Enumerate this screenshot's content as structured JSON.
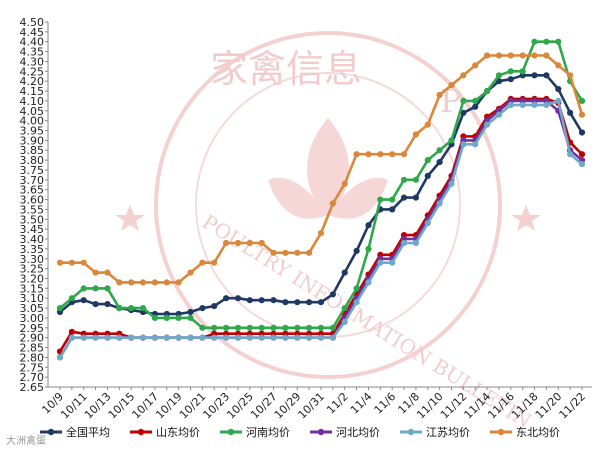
{
  "chart_data": {
    "type": "line",
    "title": "",
    "xlabel": "",
    "ylabel": "",
    "ylim": [
      2.65,
      4.5
    ],
    "ytick_step": 0.05,
    "grid": false,
    "legend_position": "bottom",
    "x_tick_labels": [
      "10/9",
      "10/11",
      "10/13",
      "10/15",
      "10/17",
      "10/19",
      "10/21",
      "10/23",
      "10/25",
      "10/27",
      "10/29",
      "10/31",
      "11/2",
      "11/4",
      "11/6",
      "11/8",
      "11/10",
      "11/12",
      "11/14",
      "11/16",
      "11/18",
      "11/20",
      "11/22"
    ],
    "x": [
      "10/9",
      "10/10",
      "10/11",
      "10/12",
      "10/13",
      "10/14",
      "10/15",
      "10/16",
      "10/17",
      "10/18",
      "10/19",
      "10/20",
      "10/21",
      "10/22",
      "10/23",
      "10/24",
      "10/25",
      "10/26",
      "10/27",
      "10/28",
      "10/29",
      "10/30",
      "10/31",
      "11/1",
      "11/2",
      "11/3",
      "11/4",
      "11/5",
      "11/6",
      "11/7",
      "11/8",
      "11/9",
      "11/10",
      "11/11",
      "11/12",
      "11/13",
      "11/14",
      "11/15",
      "11/16",
      "11/17",
      "11/18",
      "11/19",
      "11/20",
      "11/21",
      "11/22"
    ],
    "series": [
      {
        "name": "全国平均",
        "color": "#1f3864",
        "values": [
          3.03,
          3.08,
          3.09,
          3.07,
          3.07,
          3.05,
          3.04,
          3.03,
          3.02,
          3.02,
          3.02,
          3.03,
          3.05,
          3.06,
          3.1,
          3.1,
          3.09,
          3.09,
          3.09,
          3.08,
          3.08,
          3.08,
          3.08,
          3.12,
          3.23,
          3.34,
          3.47,
          3.55,
          3.55,
          3.61,
          3.61,
          3.72,
          3.79,
          3.88,
          4.04,
          4.07,
          4.15,
          4.2,
          4.21,
          4.23,
          4.23,
          4.23,
          4.16,
          4.04,
          3.94
        ]
      },
      {
        "name": "山东均价",
        "color": "#c00000",
        "values": [
          2.83,
          2.93,
          2.92,
          2.92,
          2.92,
          2.92,
          2.9,
          2.9,
          2.9,
          2.9,
          2.9,
          2.9,
          2.9,
          2.92,
          2.92,
          2.92,
          2.92,
          2.92,
          2.92,
          2.92,
          2.92,
          2.92,
          2.92,
          2.92,
          3.02,
          3.12,
          3.22,
          3.32,
          3.32,
          3.42,
          3.42,
          3.52,
          3.62,
          3.72,
          3.92,
          3.92,
          4.02,
          4.06,
          4.11,
          4.11,
          4.11,
          4.11,
          4.09,
          3.89,
          3.83
        ]
      },
      {
        "name": "河南均价",
        "color": "#2ea84a",
        "values": [
          3.05,
          3.1,
          3.15,
          3.15,
          3.15,
          3.05,
          3.05,
          3.05,
          3.0,
          3.0,
          3.0,
          3.0,
          2.95,
          2.95,
          2.95,
          2.95,
          2.95,
          2.95,
          2.95,
          2.95,
          2.95,
          2.95,
          2.95,
          2.95,
          3.05,
          3.15,
          3.35,
          3.6,
          3.6,
          3.7,
          3.7,
          3.8,
          3.85,
          3.9,
          4.1,
          4.1,
          4.15,
          4.23,
          4.25,
          4.25,
          4.4,
          4.4,
          4.4,
          4.2,
          4.1
        ]
      },
      {
        "name": "河北均价",
        "color": "#7030a0",
        "values": [
          2.8,
          2.9,
          2.9,
          2.9,
          2.9,
          2.9,
          2.9,
          2.9,
          2.9,
          2.9,
          2.9,
          2.9,
          2.9,
          2.9,
          2.9,
          2.9,
          2.9,
          2.9,
          2.9,
          2.9,
          2.9,
          2.9,
          2.9,
          2.9,
          3.0,
          3.1,
          3.2,
          3.3,
          3.3,
          3.4,
          3.4,
          3.5,
          3.6,
          3.7,
          3.9,
          3.9,
          4.0,
          4.05,
          4.1,
          4.1,
          4.1,
          4.1,
          4.05,
          3.85,
          3.8
        ]
      },
      {
        "name": "江苏均价",
        "color": "#6fa8c8",
        "values": [
          2.8,
          2.9,
          2.9,
          2.9,
          2.9,
          2.9,
          2.9,
          2.9,
          2.9,
          2.9,
          2.9,
          2.9,
          2.9,
          2.9,
          2.9,
          2.9,
          2.9,
          2.9,
          2.9,
          2.9,
          2.9,
          2.9,
          2.9,
          2.9,
          2.98,
          3.08,
          3.18,
          3.28,
          3.28,
          3.38,
          3.38,
          3.48,
          3.58,
          3.68,
          3.88,
          3.88,
          3.98,
          4.03,
          4.08,
          4.08,
          4.08,
          4.08,
          4.1,
          3.83,
          3.78
        ]
      },
      {
        "name": "东北均价",
        "color": "#d9873a",
        "values": [
          3.28,
          3.28,
          3.28,
          3.23,
          3.23,
          3.18,
          3.18,
          3.18,
          3.18,
          3.18,
          3.18,
          3.23,
          3.28,
          3.28,
          3.38,
          3.38,
          3.38,
          3.38,
          3.33,
          3.33,
          3.33,
          3.33,
          3.43,
          3.58,
          3.68,
          3.83,
          3.83,
          3.83,
          3.83,
          3.83,
          3.93,
          3.98,
          4.13,
          4.18,
          4.23,
          4.28,
          4.33,
          4.33,
          4.33,
          4.33,
          4.33,
          4.33,
          4.28,
          4.23,
          4.03
        ]
      }
    ]
  },
  "watermark": {
    "main_text": "家禽信息",
    "p_text": "P",
    "ring_text": "POULTRY INFORMATION BULLETIN",
    "color": "#f1c7c7"
  },
  "credit": "大洲禽蛋"
}
